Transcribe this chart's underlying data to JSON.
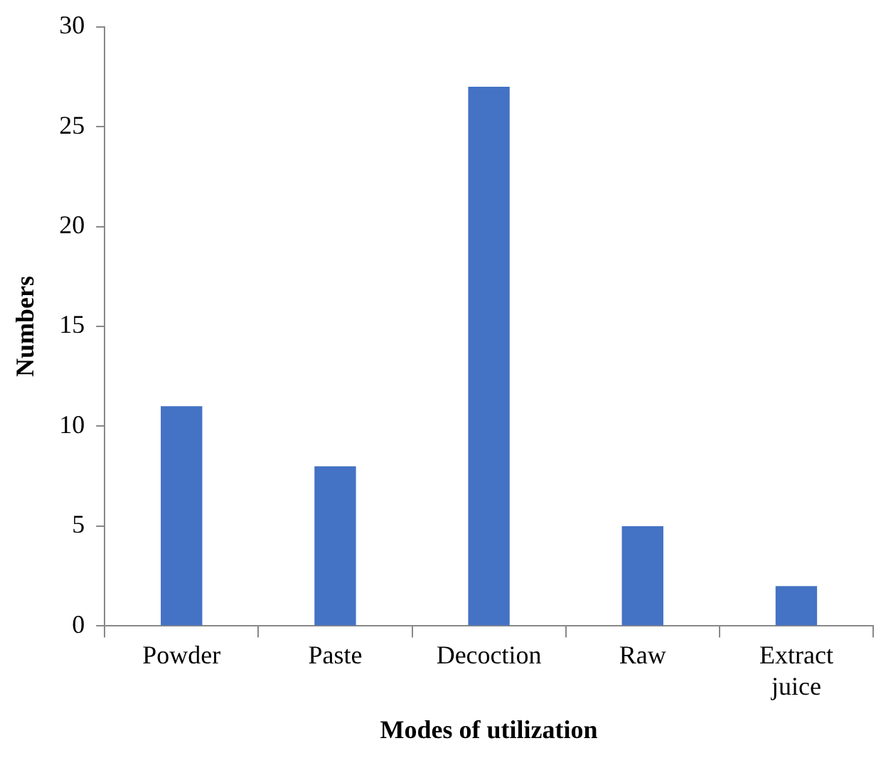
{
  "chart_data": {
    "type": "bar",
    "xlabel": "Modes of utilization",
    "ylabel": "Numbers",
    "categories": [
      "Powder",
      "Paste",
      "Decoction",
      "Raw",
      "Extract juice"
    ],
    "values": [
      11,
      8,
      27,
      5,
      2
    ],
    "color": "#4472c4",
    "ylim": [
      0,
      30
    ],
    "yticks": [
      0,
      5,
      10,
      15,
      20,
      25,
      30
    ],
    "grid": false,
    "legend": false
  }
}
